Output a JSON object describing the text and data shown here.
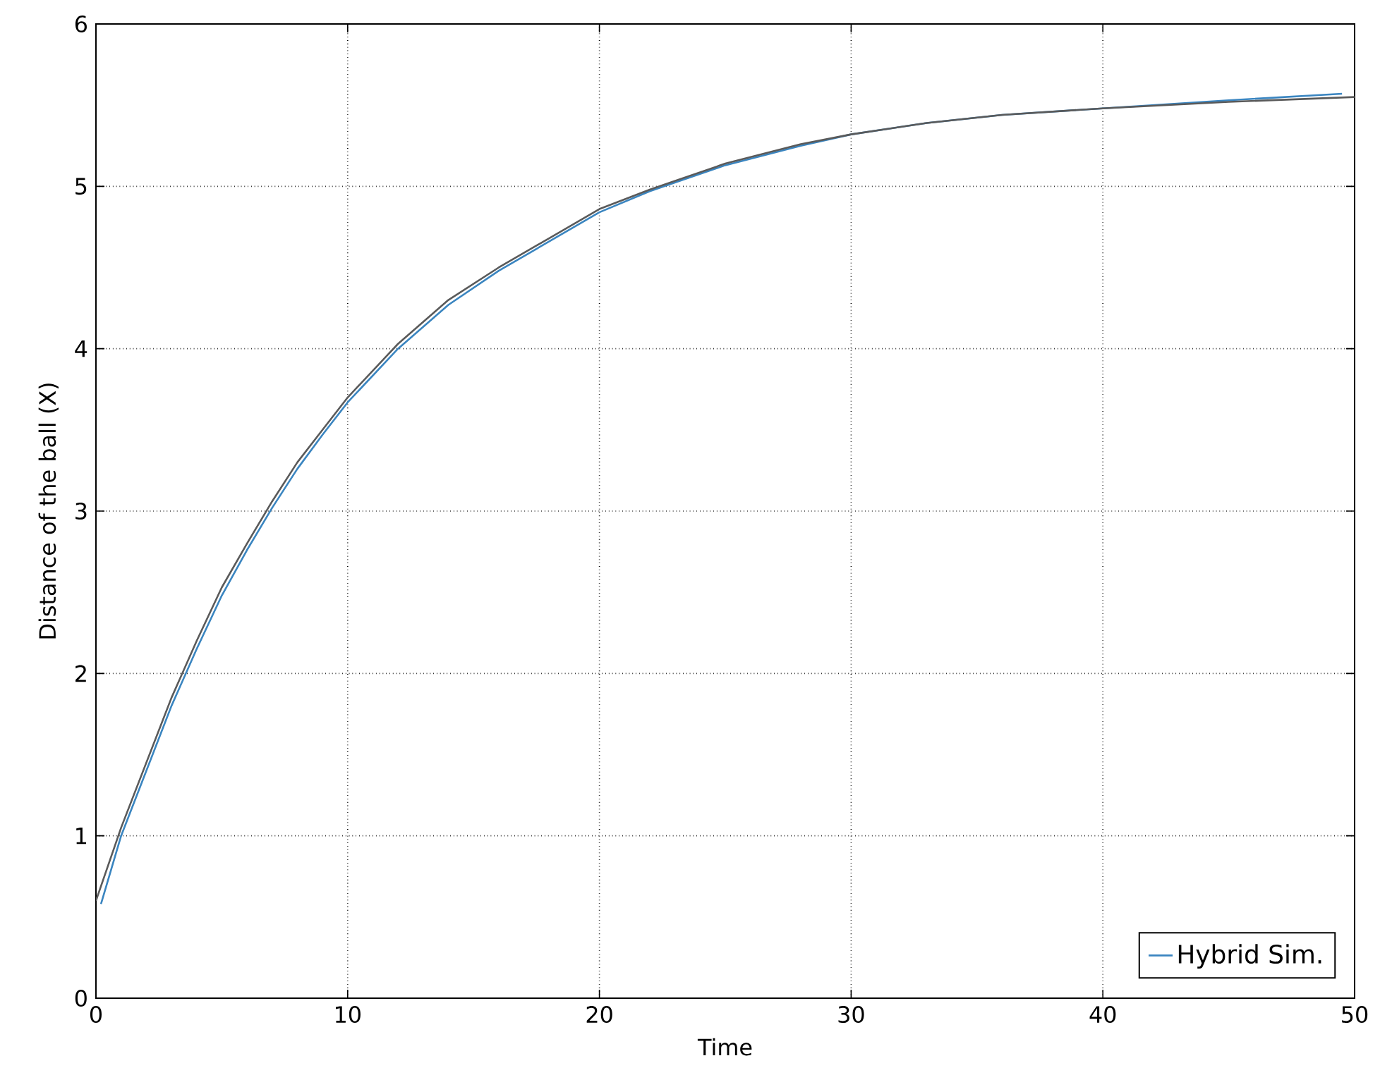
{
  "chart_data": {
    "type": "line",
    "xlabel": "Time",
    "ylabel": "Distance of the ball (X)",
    "xlim": [
      0,
      50
    ],
    "ylim": [
      0,
      6
    ],
    "xticks": [
      0,
      10,
      20,
      30,
      40,
      50
    ],
    "yticks": [
      0,
      1,
      2,
      3,
      4,
      5,
      6
    ],
    "grid": true,
    "legend": "bottom right",
    "line_style": "solid",
    "marker": "none",
    "series": [
      {
        "name": "Hybrid Sim.",
        "color": "#3a85c0",
        "x": [
          0.2,
          1,
          2,
          3,
          4,
          5,
          6,
          7,
          8,
          9,
          10,
          12,
          14,
          16,
          18,
          20,
          22,
          25,
          28,
          30,
          33,
          36,
          40,
          45,
          49.5
        ],
        "values": [
          0.58,
          1.0,
          1.4,
          1.8,
          2.15,
          2.48,
          2.76,
          3.02,
          3.26,
          3.47,
          3.67,
          4.0,
          4.27,
          4.48,
          4.66,
          4.84,
          4.97,
          5.13,
          5.25,
          5.32,
          5.39,
          5.44,
          5.48,
          5.53,
          5.57
        ]
      },
      {
        "color": "#5a5a5a",
        "x": [
          0,
          1,
          2,
          3,
          4,
          5,
          6,
          7,
          8,
          9,
          10,
          12,
          14,
          16,
          18,
          20,
          22,
          25,
          28,
          30,
          33,
          36,
          40,
          45,
          50
        ],
        "values": [
          0.6,
          1.05,
          1.45,
          1.85,
          2.2,
          2.53,
          2.8,
          3.06,
          3.3,
          3.5,
          3.7,
          4.03,
          4.3,
          4.5,
          4.68,
          4.86,
          4.98,
          5.14,
          5.26,
          5.32,
          5.39,
          5.44,
          5.48,
          5.52,
          5.55
        ]
      }
    ]
  }
}
